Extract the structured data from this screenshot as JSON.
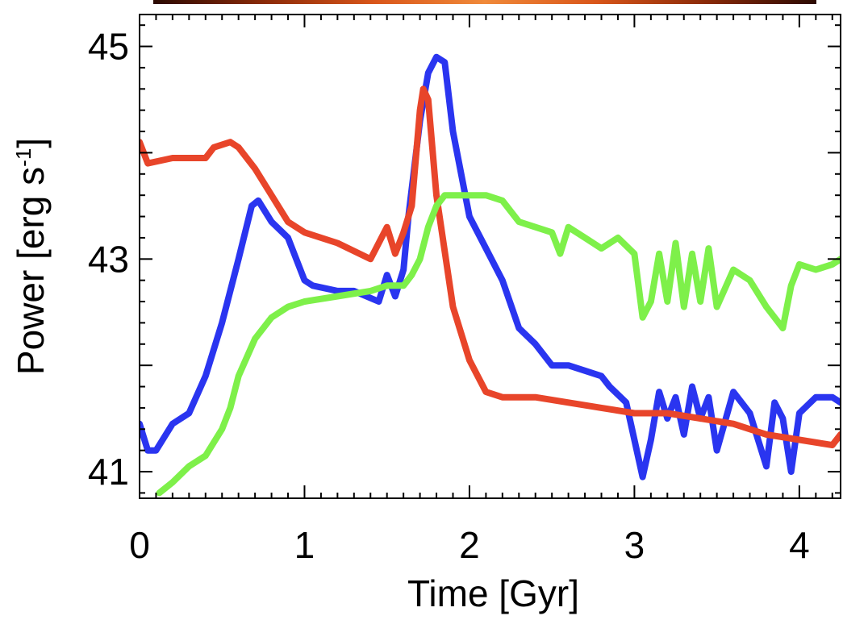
{
  "chart_data": {
    "type": "line",
    "xlabel": "Time  [Gyr]",
    "ylabel_main": "Power  [erg s",
    "ylabel_sup": "-1",
    "ylabel_close": "]",
    "xlim": [
      0,
      4.25
    ],
    "ylim": [
      40.75,
      45.3
    ],
    "xticks": [
      0,
      1,
      2,
      3,
      4
    ],
    "yticks": [
      41,
      43,
      45
    ],
    "grid": false,
    "legend": "none",
    "series": [
      {
        "color": "#2a35f0",
        "x": [
          0,
          0.05,
          0.1,
          0.2,
          0.3,
          0.4,
          0.5,
          0.6,
          0.68,
          0.72,
          0.8,
          0.9,
          1.0,
          1.05,
          1.2,
          1.3,
          1.45,
          1.5,
          1.55,
          1.6,
          1.63,
          1.7,
          1.75,
          1.8,
          1.85,
          1.9,
          2.0,
          2.1,
          2.2,
          2.3,
          2.4,
          2.5,
          2.6,
          2.7,
          2.8,
          2.85,
          2.95,
          3.05,
          3.1,
          3.15,
          3.2,
          3.25,
          3.3,
          3.35,
          3.4,
          3.45,
          3.5,
          3.6,
          3.7,
          3.8,
          3.85,
          3.9,
          3.95,
          4.0,
          4.1,
          4.2,
          4.25
        ],
        "y": [
          41.45,
          41.2,
          41.2,
          41.45,
          41.55,
          41.9,
          42.4,
          43.0,
          43.5,
          43.55,
          43.35,
          43.2,
          42.8,
          42.75,
          42.7,
          42.7,
          42.6,
          42.85,
          42.65,
          42.9,
          43.4,
          44.3,
          44.75,
          44.9,
          44.85,
          44.2,
          43.4,
          43.1,
          42.8,
          42.35,
          42.2,
          42.0,
          42.0,
          41.95,
          41.9,
          41.8,
          41.65,
          40.95,
          41.3,
          41.75,
          41.5,
          41.7,
          41.35,
          41.8,
          41.5,
          41.7,
          41.2,
          41.75,
          41.55,
          41.05,
          41.65,
          41.5,
          41.0,
          41.55,
          41.7,
          41.7,
          41.65
        ]
      },
      {
        "color": "#e8452a",
        "x": [
          0,
          0.05,
          0.2,
          0.4,
          0.45,
          0.55,
          0.6,
          0.7,
          0.8,
          0.9,
          1.0,
          1.2,
          1.4,
          1.5,
          1.55,
          1.6,
          1.65,
          1.7,
          1.72,
          1.75,
          1.8,
          1.9,
          2.0,
          2.1,
          2.2,
          2.4,
          2.6,
          2.8,
          3.0,
          3.2,
          3.4,
          3.6,
          3.8,
          4.0,
          4.2,
          4.25
        ],
        "y": [
          44.1,
          43.9,
          43.95,
          43.95,
          44.05,
          44.1,
          44.05,
          43.85,
          43.6,
          43.35,
          43.25,
          43.15,
          43.0,
          43.3,
          43.05,
          43.25,
          43.5,
          44.4,
          44.6,
          44.5,
          43.6,
          42.55,
          42.05,
          41.75,
          41.7,
          41.7,
          41.65,
          41.6,
          41.55,
          41.55,
          41.5,
          41.45,
          41.35,
          41.3,
          41.25,
          41.35
        ]
      },
      {
        "color": "#7ef04a",
        "x": [
          0.12,
          0.2,
          0.3,
          0.4,
          0.5,
          0.55,
          0.6,
          0.7,
          0.8,
          0.9,
          1.0,
          1.2,
          1.4,
          1.5,
          1.6,
          1.65,
          1.7,
          1.75,
          1.8,
          1.85,
          1.9,
          2.0,
          2.1,
          2.2,
          2.3,
          2.4,
          2.5,
          2.55,
          2.6,
          2.7,
          2.8,
          2.9,
          3.0,
          3.05,
          3.1,
          3.15,
          3.2,
          3.25,
          3.3,
          3.35,
          3.4,
          3.45,
          3.5,
          3.6,
          3.7,
          3.8,
          3.9,
          3.95,
          4.0,
          4.1,
          4.2,
          4.25
        ],
        "y": [
          40.8,
          40.9,
          41.05,
          41.15,
          41.4,
          41.6,
          41.9,
          42.25,
          42.45,
          42.55,
          42.6,
          42.65,
          42.7,
          42.75,
          42.75,
          42.85,
          43.0,
          43.3,
          43.5,
          43.6,
          43.6,
          43.6,
          43.6,
          43.55,
          43.35,
          43.3,
          43.25,
          43.05,
          43.3,
          43.2,
          43.1,
          43.2,
          43.05,
          42.45,
          42.6,
          43.05,
          42.6,
          43.15,
          42.55,
          43.05,
          42.6,
          43.1,
          42.55,
          42.9,
          42.8,
          42.55,
          42.35,
          42.75,
          42.95,
          42.9,
          42.95,
          43.0
        ]
      }
    ],
    "top_strip_colors": [
      "#2b0a02",
      "#8a2a08",
      "#d9561a",
      "#f08a3a",
      "#d9561a",
      "#8a2a08",
      "#2b0a02"
    ]
  }
}
